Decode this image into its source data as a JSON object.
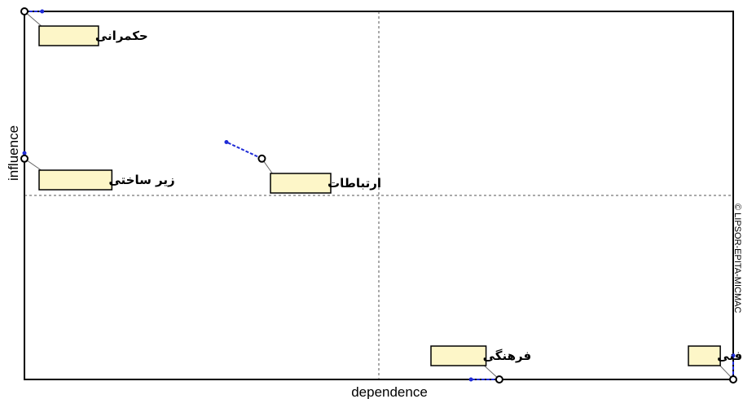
{
  "chart_data": {
    "type": "scatter",
    "xlabel": "dependence",
    "ylabel": "influence",
    "copyright": "© LIPSOR-EPITA-MICMAC",
    "xlim": [
      0,
      1
    ],
    "ylim": [
      0,
      1
    ],
    "colors": {
      "point_stroke": "#000000",
      "label_bg": "#fdf6c8",
      "displacement": "#1f2bd6",
      "frame": "#000000",
      "quadrant_line": "#555555"
    },
    "points": [
      {
        "label": "حکمرانی",
        "x": 0.0,
        "y": 1.0,
        "x2": 0.025,
        "y2": 1.0
      },
      {
        "label": "زیر ساختی",
        "x": 0.0,
        "y": 0.6,
        "x2": 0.0,
        "y2": 0.615
      },
      {
        "label": "ارتباطات",
        "x": 0.335,
        "y": 0.6,
        "x2": 0.285,
        "y2": 0.645
      },
      {
        "label": "فرهنگی",
        "x": 0.67,
        "y": 0.0,
        "x2": 0.63,
        "y2": 0.0
      },
      {
        "label": "فنی",
        "x": 1.0,
        "y": 0.0,
        "x2": 1.0,
        "y2": 0.065
      }
    ]
  }
}
